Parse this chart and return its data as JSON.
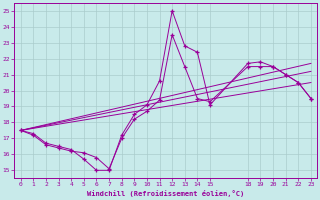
{
  "bg_color": "#c8eaea",
  "line_color": "#990099",
  "grid_color": "#aacccc",
  "spine_color": "#990099",
  "xlabel": "Windchill (Refroidissement éolien,°C)",
  "xlim": [
    -0.5,
    23.5
  ],
  "ylim": [
    14.5,
    25.5
  ],
  "yticks": [
    15,
    16,
    17,
    18,
    19,
    20,
    21,
    22,
    23,
    24,
    25
  ],
  "xticks": [
    0,
    1,
    2,
    3,
    4,
    5,
    6,
    7,
    8,
    9,
    10,
    11,
    12,
    13,
    14,
    15,
    18,
    19,
    20,
    21,
    22,
    23
  ],
  "series1": {
    "x": [
      0,
      1,
      2,
      3,
      4,
      5,
      6,
      7,
      8,
      9,
      10,
      11,
      12,
      13,
      14,
      15,
      18,
      19,
      20,
      21,
      22,
      23
    ],
    "y": [
      17.5,
      17.3,
      16.7,
      16.5,
      16.3,
      15.7,
      15.0,
      15.0,
      17.2,
      18.5,
      19.1,
      20.6,
      25.0,
      22.8,
      22.4,
      19.1,
      21.7,
      21.8,
      21.5,
      21.0,
      20.5,
      19.5
    ]
  },
  "series2": {
    "x": [
      0,
      1,
      2,
      3,
      4,
      5,
      6,
      7,
      8,
      9,
      10,
      11,
      12,
      13,
      14,
      15,
      18,
      19,
      20,
      21,
      22,
      23
    ],
    "y": [
      17.5,
      17.2,
      16.6,
      16.4,
      16.2,
      16.1,
      15.8,
      15.1,
      17.0,
      18.2,
      18.7,
      19.4,
      23.5,
      21.5,
      19.5,
      19.3,
      21.5,
      21.5,
      21.5,
      21.0,
      20.5,
      19.5
    ]
  },
  "line1": {
    "x": [
      0,
      23
    ],
    "y": [
      17.5,
      21.7
    ]
  },
  "line2": {
    "x": [
      0,
      23
    ],
    "y": [
      17.5,
      21.2
    ]
  },
  "line3": {
    "x": [
      0,
      23
    ],
    "y": [
      17.5,
      20.5
    ]
  }
}
